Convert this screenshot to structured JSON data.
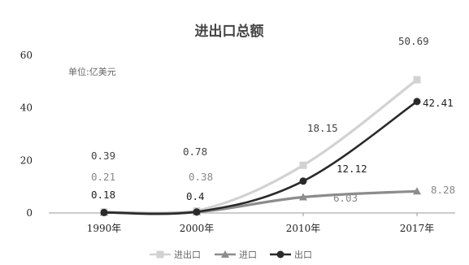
{
  "chart_data": {
    "type": "line",
    "title": "进出口总额",
    "unit_note": "单位:亿美元",
    "categories": [
      "1990年",
      "2000年",
      "2010年",
      "2017年"
    ],
    "ylim": [
      0,
      60
    ],
    "yticks": [
      0,
      20,
      40,
      60
    ],
    "grid": false,
    "legend_position": "bottom",
    "series": [
      {
        "name": "进出口",
        "values": [
          0.39,
          0.78,
          18.15,
          50.69
        ],
        "labels": [
          "0.39",
          "0.78",
          "18.15",
          "50.69"
        ],
        "color": "#d2d2d2",
        "marker": "square"
      },
      {
        "name": "进口",
        "values": [
          0.21,
          0.38,
          6.03,
          8.28
        ],
        "labels": [
          "0.21",
          "0.38",
          "6.03",
          "8.28"
        ],
        "color": "#8c8c8c",
        "marker": "triangle"
      },
      {
        "name": "出口",
        "values": [
          0.18,
          0.4,
          12.12,
          42.41
        ],
        "labels": [
          "0.18",
          "0.4",
          "12.12",
          "42.41"
        ],
        "color": "#2a2a2a",
        "marker": "circle"
      }
    ]
  }
}
